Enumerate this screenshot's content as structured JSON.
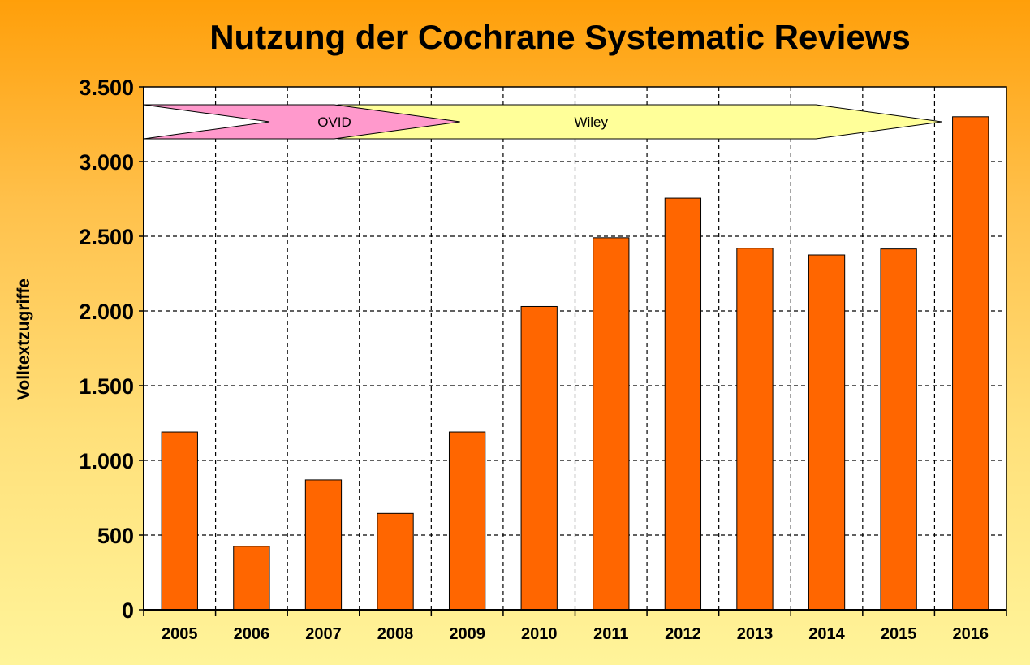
{
  "chart_data": {
    "type": "bar",
    "title": "Nutzung der Cochrane Systematic Reviews",
    "ylabel": "Volltextzugriffe",
    "xlabel": "",
    "categories": [
      "2005",
      "2006",
      "2007",
      "2008",
      "2009",
      "2010",
      "2011",
      "2012",
      "2013",
      "2014",
      "2015",
      "2016"
    ],
    "values": [
      1190,
      425,
      870,
      645,
      1190,
      2030,
      2490,
      2755,
      2420,
      2375,
      2415,
      3300
    ],
    "ylim": [
      0,
      3500
    ],
    "yticks": [
      0,
      500,
      1000,
      1500,
      2000,
      2500,
      3000,
      3500
    ],
    "ytick_labels": [
      "0",
      "500",
      "1.000",
      "1.500",
      "2.000",
      "2.500",
      "3.000",
      "3.500"
    ],
    "grid": true,
    "bar_color": "#FF6600",
    "plot_background": "#FFFFFF",
    "annotations": [
      {
        "label": "OVID",
        "from": "2005",
        "to": "2009",
        "color": "#FF99CC"
      },
      {
        "label": "Wiley",
        "from": "2008",
        "to": "2016",
        "color": "#FFFF99"
      }
    ]
  }
}
